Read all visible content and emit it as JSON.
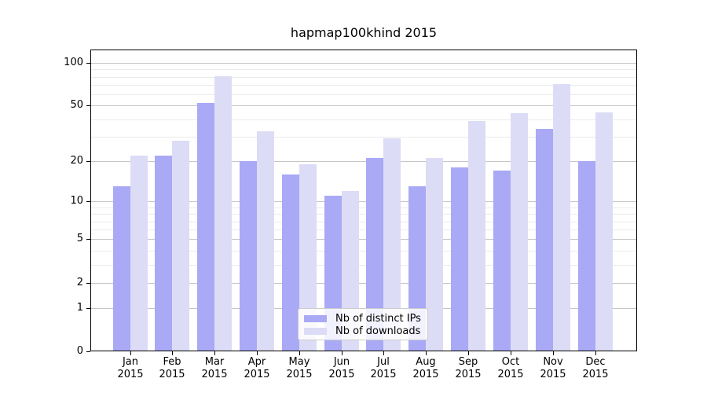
{
  "chart_data": {
    "type": "bar",
    "title": "hapmap100khind 2015",
    "categories": [
      "Jan",
      "Feb",
      "Mar",
      "Apr",
      "May",
      "Jun",
      "Jul",
      "Aug",
      "Sep",
      "Oct",
      "Nov",
      "Dec"
    ],
    "x_tick_second_line": "2015",
    "series": [
      {
        "name": "Nb of distinct IPs",
        "color": "#a9a9f6",
        "values": [
          13,
          22,
          52,
          20,
          16,
          11,
          21,
          13,
          18,
          17,
          34,
          20
        ]
      },
      {
        "name": "Nb of downloads",
        "color": "#dcdcf6",
        "values": [
          22,
          28,
          81,
          33,
          19,
          12,
          29,
          21,
          39,
          44,
          71,
          45
        ]
      }
    ],
    "y_scale": "log10(1+v)",
    "y_ticks": [
      100,
      50,
      20,
      10,
      5,
      2,
      1,
      0
    ],
    "y_minor_gridlines": [
      3,
      4,
      6,
      7,
      8,
      9,
      30,
      40,
      60,
      70,
      80,
      90
    ],
    "y_axis_max": 124,
    "ylim": [
      0,
      124
    ],
    "grid": true,
    "legend_position": "lower center",
    "xlabel": "",
    "ylabel": ""
  }
}
